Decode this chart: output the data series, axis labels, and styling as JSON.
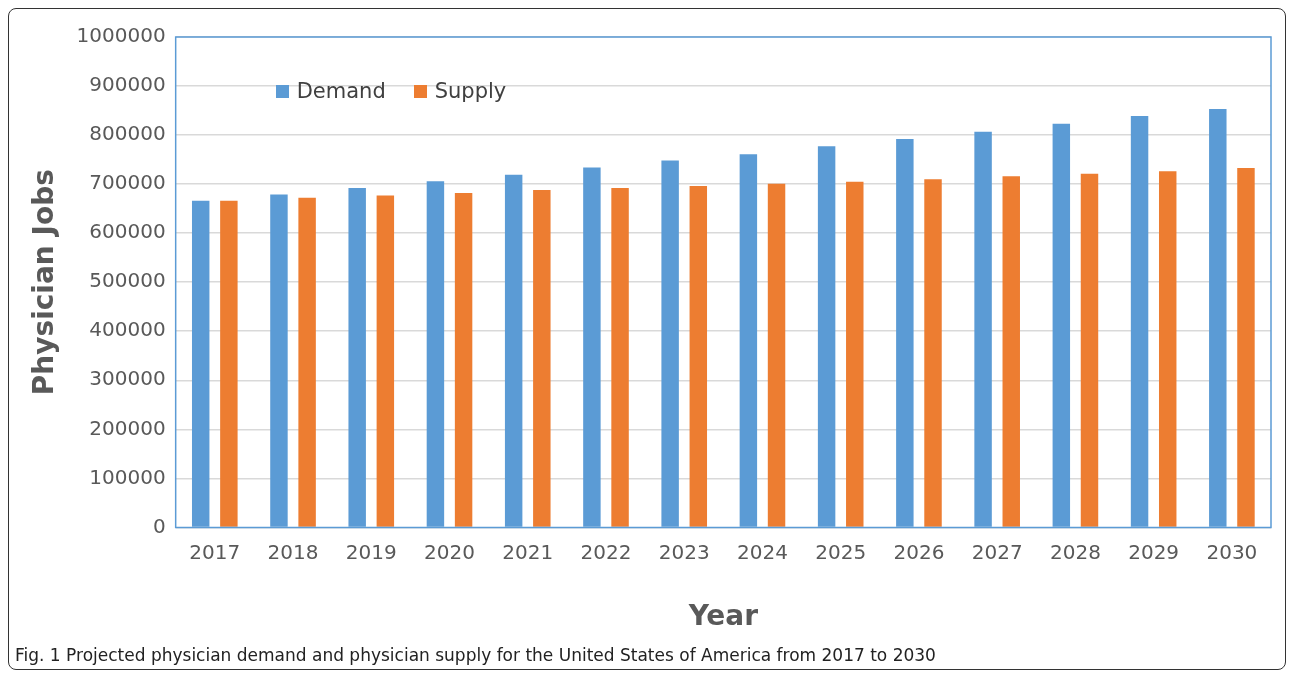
{
  "chart_data": {
    "type": "bar",
    "xlabel": "Year",
    "ylabel": "Physician Jobs",
    "categories": [
      "2017",
      "2018",
      "2019",
      "2020",
      "2021",
      "2022",
      "2023",
      "2024",
      "2025",
      "2026",
      "2027",
      "2028",
      "2029",
      "2030"
    ],
    "series": [
      {
        "name": "Demand",
        "color": "#5b9bd5",
        "values": [
          666000,
          679000,
          692000,
          706000,
          719000,
          734000,
          748000,
          761000,
          777000,
          792000,
          807000,
          823000,
          839000,
          853000
        ]
      },
      {
        "name": "Supply",
        "color": "#ed7d31",
        "values": [
          666000,
          672000,
          677000,
          682000,
          688000,
          692000,
          696000,
          701000,
          705000,
          710000,
          716000,
          721000,
          726000,
          733000
        ]
      }
    ],
    "ylim": [
      0,
      1000000
    ],
    "yticks": [
      0,
      100000,
      200000,
      300000,
      400000,
      500000,
      600000,
      700000,
      800000,
      900000,
      1000000
    ],
    "grid": "y",
    "legend": "top left",
    "annotations": [
      "Fig. 1 Projected physician demand and physician supply for the United States of America from 2017 to 2030"
    ]
  }
}
